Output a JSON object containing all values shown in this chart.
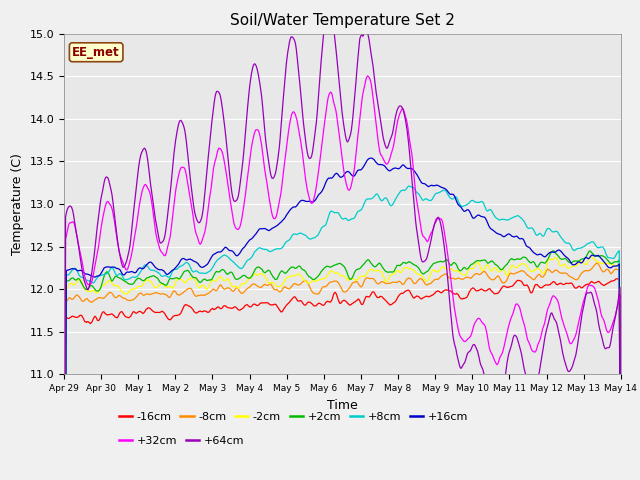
{
  "title": "Soil/Water Temperature Set 2",
  "xlabel": "Time",
  "ylabel": "Temperature (C)",
  "ylim": [
    11.0,
    15.0
  ],
  "yticks": [
    11.0,
    11.5,
    12.0,
    12.5,
    13.0,
    13.5,
    14.0,
    14.5,
    15.0
  ],
  "x_labels": [
    "Apr 29",
    "Apr 30",
    "May 1",
    "May 2",
    "May 3",
    "May 4",
    "May 5",
    "May 6",
    "May 7",
    "May 8",
    "May 9",
    "May 10",
    "May 11",
    "May 12",
    "May 13",
    "May 14"
  ],
  "annotation_text": "EE_met",
  "annotation_bg": "#FFFFCC",
  "annotation_border": "#8B4513",
  "plot_bg": "#E8E8E8",
  "fig_bg": "#F0F0F0",
  "series": [
    {
      "label": "-16cm",
      "color": "#FF0000"
    },
    {
      "label": "-8cm",
      "color": "#FF8C00"
    },
    {
      "label": "-2cm",
      "color": "#FFFF00"
    },
    {
      "label": "+2cm",
      "color": "#00BB00"
    },
    {
      "label": "+8cm",
      "color": "#00CCCC"
    },
    {
      "label": "+16cm",
      "color": "#0000CC"
    },
    {
      "label": "+32cm",
      "color": "#FF00FF"
    },
    {
      "label": "+64cm",
      "color": "#9900BB"
    }
  ],
  "legend_row1": [
    "-16cm",
    "-8cm",
    "-2cm",
    "+2cm",
    "+8cm",
    "+16cm"
  ],
  "legend_row2": [
    "+32cm",
    "+64cm"
  ],
  "title_fontsize": 11,
  "axis_label_fontsize": 9,
  "tick_fontsize": 8,
  "legend_fontsize": 8
}
